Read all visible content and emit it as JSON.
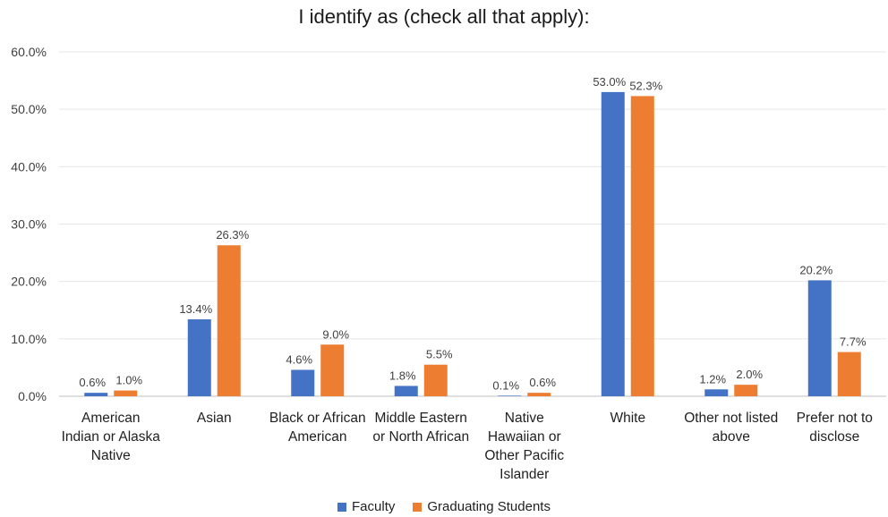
{
  "chart_data": {
    "type": "bar",
    "title": "I identify as (check all that apply):",
    "categories": [
      [
        "American",
        "Indian or Alaska",
        "Native"
      ],
      [
        "Asian"
      ],
      [
        "Black or African",
        "American"
      ],
      [
        "Middle Eastern",
        "or North African"
      ],
      [
        "Native",
        "Hawaiian or",
        "Other Pacific",
        "Islander"
      ],
      [
        "White"
      ],
      [
        "Other not listed",
        "above"
      ],
      [
        "Prefer not to",
        "disclose"
      ]
    ],
    "series": [
      {
        "name": "Faculty",
        "color": "#4472C4",
        "values": [
          0.6,
          13.4,
          4.6,
          1.8,
          0.1,
          53.0,
          1.2,
          20.2
        ],
        "labels": [
          "0.6%",
          "13.4%",
          "4.6%",
          "1.8%",
          "0.1%",
          "53.0%",
          "1.2%",
          "20.2%"
        ]
      },
      {
        "name": "Graduating Students",
        "color": "#ED7D31",
        "values": [
          1.0,
          26.3,
          9.0,
          5.5,
          0.6,
          52.3,
          2.0,
          7.7
        ],
        "labels": [
          "1.0%",
          "26.3%",
          "9.0%",
          "5.5%",
          "0.6%",
          "52.3%",
          "2.0%",
          "7.7%"
        ]
      }
    ],
    "yticks": [
      "0.0%",
      "10.0%",
      "20.0%",
      "30.0%",
      "40.0%",
      "50.0%",
      "60.0%"
    ],
    "ylim": [
      0,
      60
    ],
    "xlabel": "",
    "ylabel": "",
    "grid": true,
    "legend_position": "bottom"
  }
}
